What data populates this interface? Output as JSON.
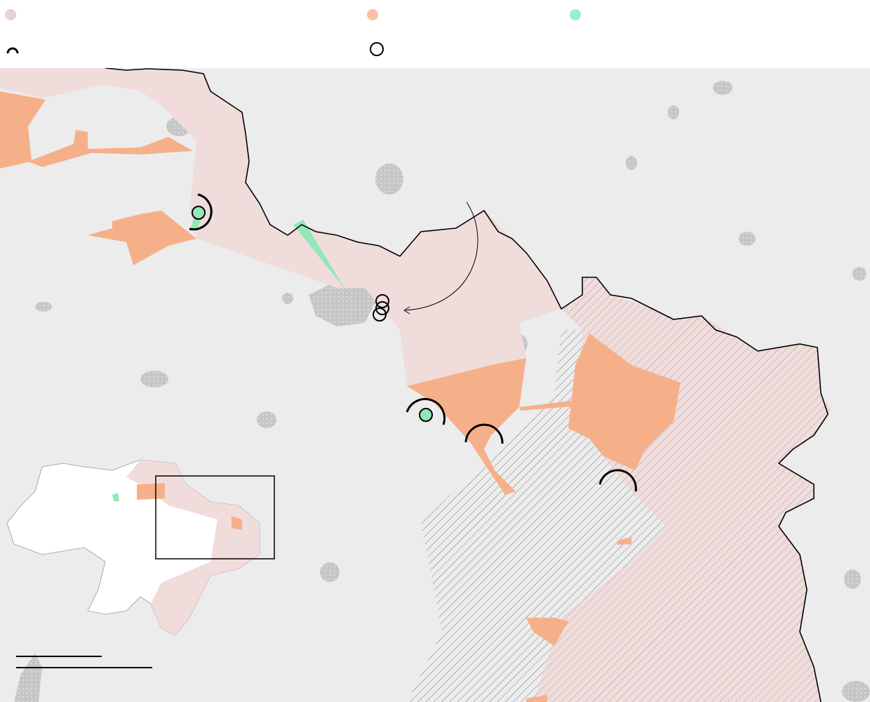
{
  "legend": {
    "items": [
      {
        "icon": "pink-area-dot",
        "color": "#e6d3d3"
      },
      {
        "icon": "orange-area-dot",
        "color": "#f7c29f"
      },
      {
        "icon": "green-area-dot",
        "color": "#9af0c5"
      },
      {
        "icon": "encirclement-arc-icon",
        "color": "#000000"
      },
      {
        "icon": "settlement-circle-icon",
        "color": "#000000"
      }
    ]
  },
  "colors": {
    "background": "#ececec",
    "pink_area": "#f1dcdc",
    "orange_area": "#f5b08a",
    "green_area": "#92e8b8",
    "city": "#c9c9c9",
    "border": "#000000",
    "hatch": "#777777"
  },
  "inset": {
    "icon": "country-overview-map"
  },
  "scale_bar": {
    "icon": "scale-bar"
  }
}
